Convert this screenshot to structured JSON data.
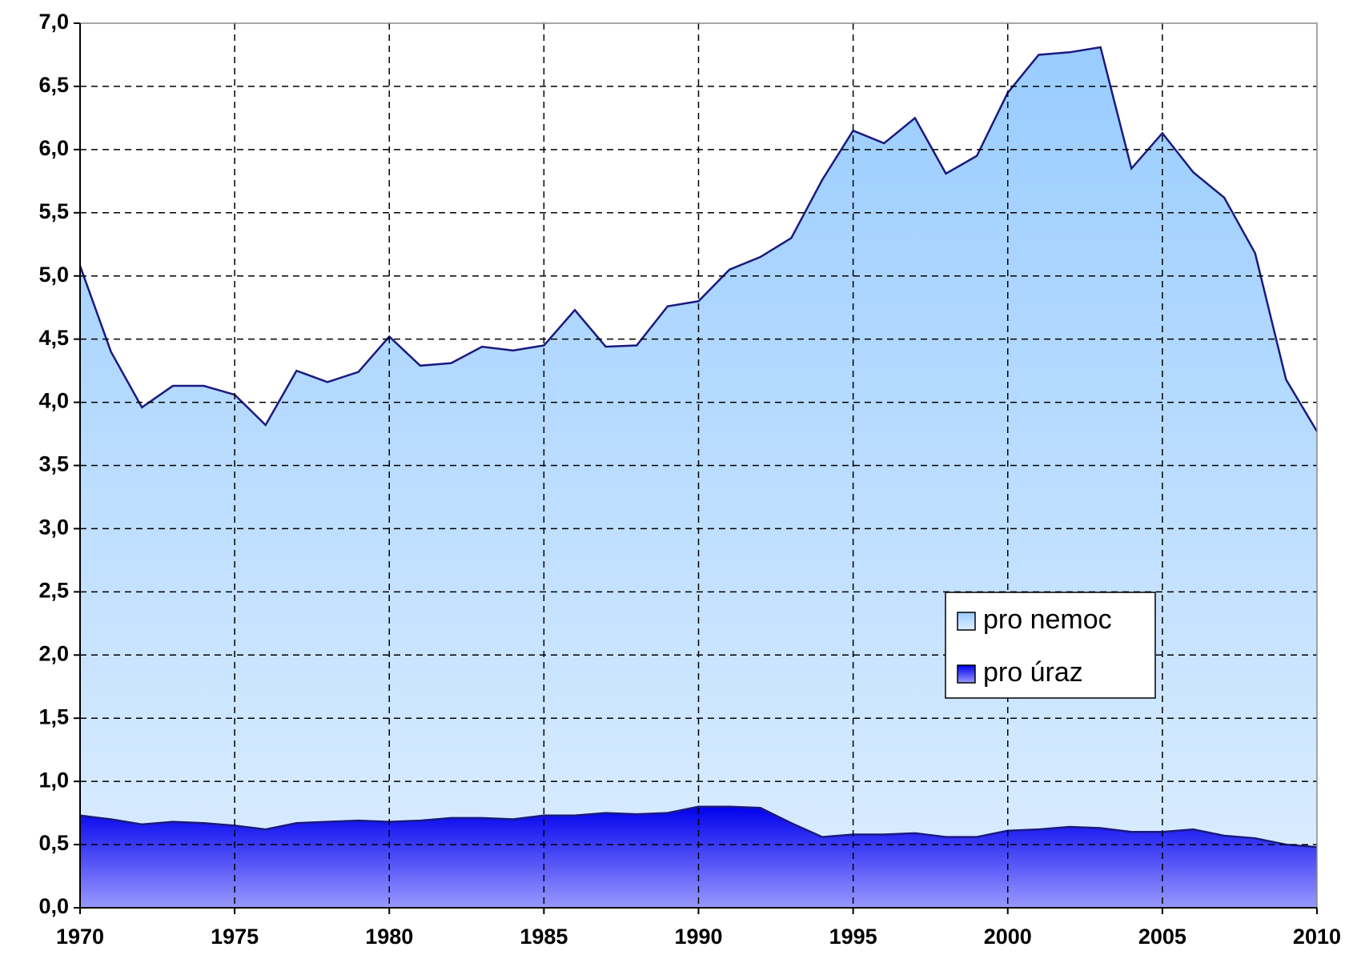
{
  "chart_data": {
    "type": "area",
    "x": [
      1970,
      1971,
      1972,
      1973,
      1974,
      1975,
      1976,
      1977,
      1978,
      1979,
      1980,
      1981,
      1982,
      1983,
      1984,
      1985,
      1986,
      1987,
      1988,
      1989,
      1990,
      1991,
      1992,
      1993,
      1994,
      1995,
      1996,
      1997,
      1998,
      1999,
      2000,
      2001,
      2002,
      2003,
      2004,
      2005,
      2006,
      2007,
      2008,
      2009,
      2010
    ],
    "series": [
      {
        "name": "pro nemoc",
        "color": "#99ccff",
        "values": [
          5.08,
          4.4,
          3.96,
          4.13,
          4.13,
          4.06,
          3.82,
          4.25,
          4.16,
          4.24,
          4.52,
          4.29,
          4.31,
          4.44,
          4.41,
          4.45,
          4.73,
          4.44,
          4.45,
          4.76,
          4.8,
          5.05,
          5.15,
          5.3,
          5.76,
          6.15,
          6.05,
          6.25,
          5.81,
          5.95,
          6.45,
          6.75,
          6.77,
          6.81,
          5.85,
          6.13,
          5.82,
          5.62,
          5.18,
          4.18,
          3.77
        ]
      },
      {
        "name": "pro úraz",
        "color": "#2222ee",
        "values": [
          0.73,
          0.7,
          0.66,
          0.68,
          0.67,
          0.65,
          0.62,
          0.67,
          0.68,
          0.69,
          0.68,
          0.69,
          0.71,
          0.71,
          0.7,
          0.73,
          0.73,
          0.75,
          0.74,
          0.75,
          0.8,
          0.8,
          0.79,
          0.67,
          0.56,
          0.58,
          0.58,
          0.59,
          0.56,
          0.56,
          0.61,
          0.62,
          0.64,
          0.63,
          0.6,
          0.6,
          0.62,
          0.57,
          0.55,
          0.5,
          0.48
        ]
      }
    ],
    "xlim": [
      1970,
      2010
    ],
    "xticks": [
      1970,
      1975,
      1980,
      1985,
      1990,
      1995,
      2000,
      2005,
      2010
    ],
    "ylim": [
      0,
      7
    ],
    "yticks": [
      {
        "value": 0,
        "label": "0,0"
      },
      {
        "value": 0.5,
        "label": "0,5"
      },
      {
        "value": 1,
        "label": "1,0"
      },
      {
        "value": 1.5,
        "label": "1,5"
      },
      {
        "value": 2,
        "label": "2,0"
      },
      {
        "value": 2.5,
        "label": "2,5"
      },
      {
        "value": 3,
        "label": "3,0"
      },
      {
        "value": 3.5,
        "label": "3,5"
      },
      {
        "value": 4,
        "label": "4,0"
      },
      {
        "value": 4.5,
        "label": "4,5"
      },
      {
        "value": 5,
        "label": "5,0"
      },
      {
        "value": 5.5,
        "label": "5,5"
      },
      {
        "value": 6,
        "label": "6,0"
      },
      {
        "value": 6.5,
        "label": "6,5"
      },
      {
        "value": 7,
        "label": "7,0"
      }
    ],
    "grid": true
  }
}
